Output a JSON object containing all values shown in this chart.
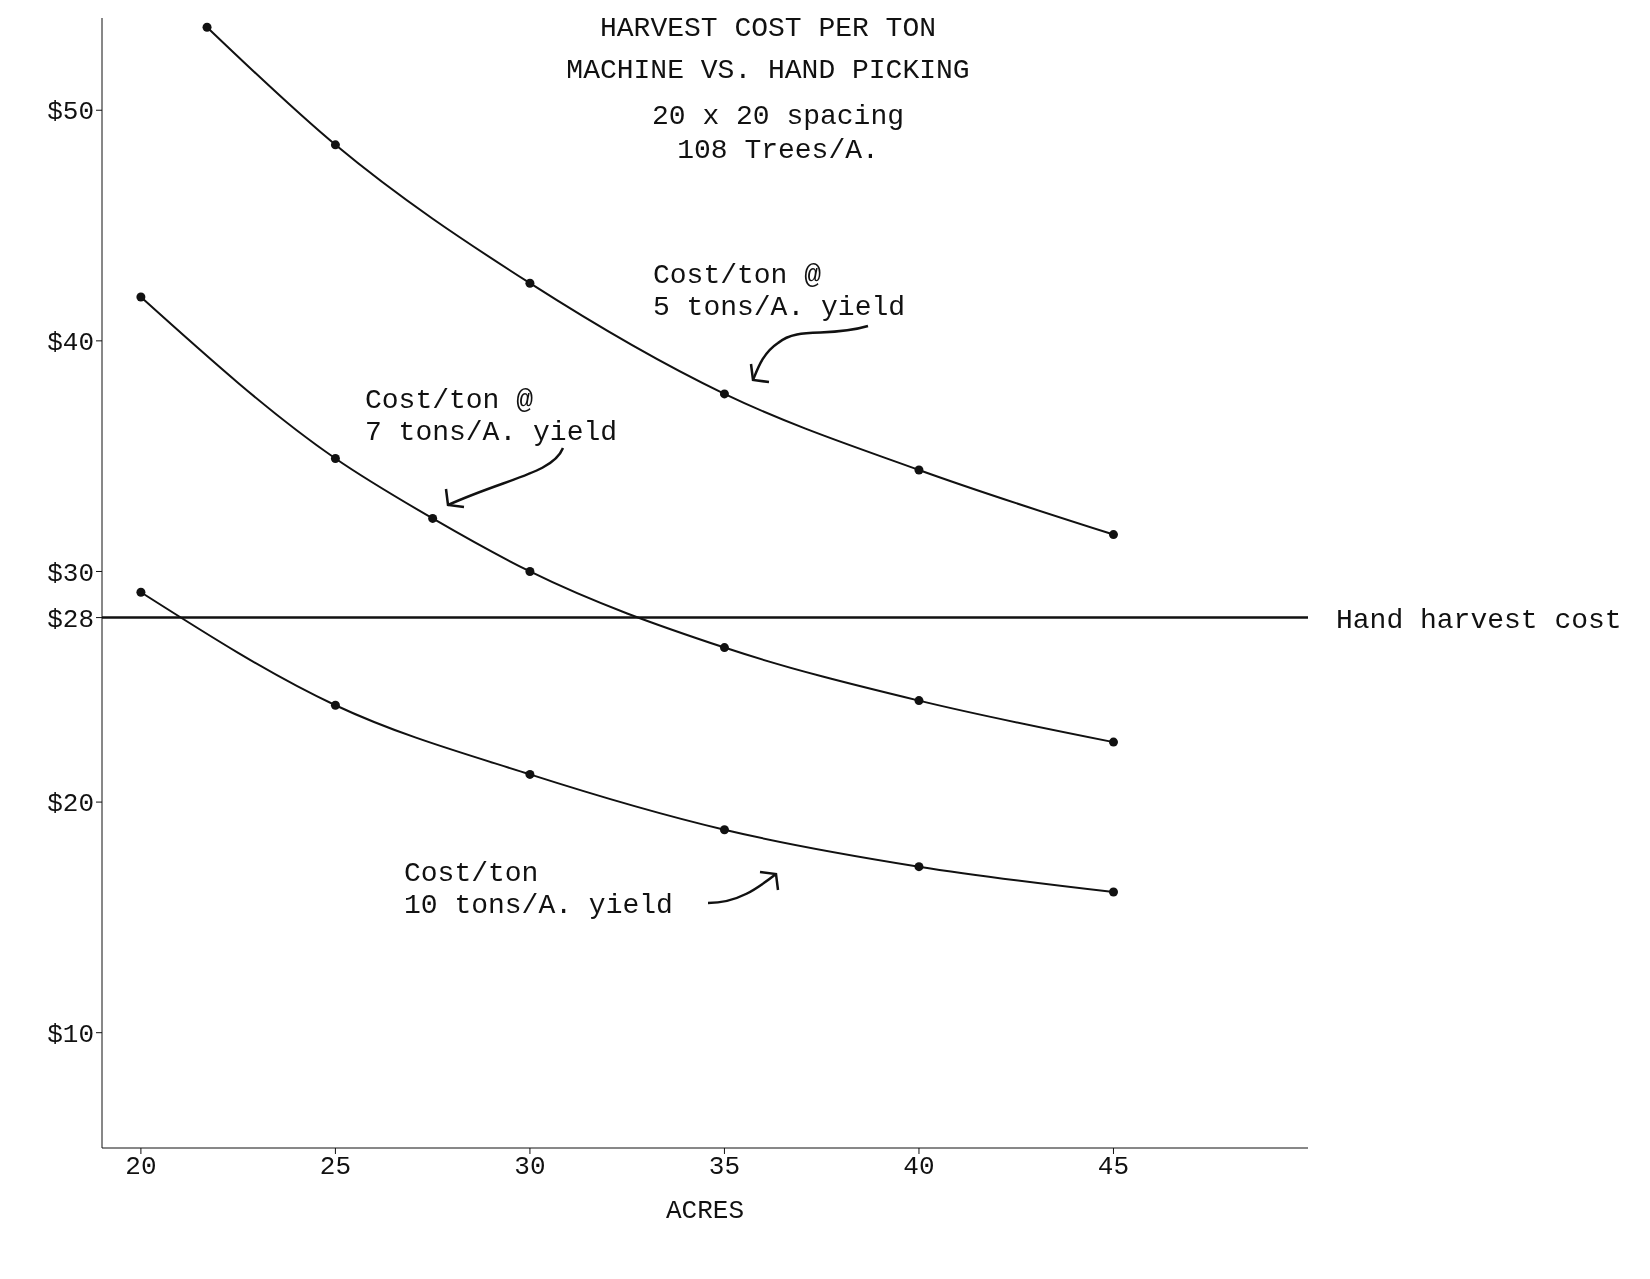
{
  "chart_data": {
    "type": "line",
    "title": "HARVEST COST PER TON\nMACHINE VS. HAND PICKING",
    "subtitle": "20 x 20 spacing\n108 Trees/A.",
    "xlabel": "ACRES",
    "series": [
      {
        "color": "#111111",
        "x": [
          21.7,
          25,
          30,
          35,
          40,
          45
        ],
        "values": [
          53.6,
          48.5,
          42.5,
          37.7,
          34.4,
          31.6
        ]
      },
      {
        "color": "#111111",
        "x": [
          20,
          25,
          27.5,
          30,
          35,
          40,
          45
        ],
        "values": [
          41.9,
          34.9,
          32.3,
          30.0,
          26.7,
          24.4,
          22.6
        ]
      },
      {
        "color": "#111111",
        "x": [
          20,
          25,
          30,
          35,
          40,
          45
        ],
        "values": [
          29.1,
          24.2,
          21.2,
          18.8,
          17.2,
          16.1
        ]
      }
    ],
    "xlim": [
      19,
      50
    ],
    "xticks": [
      20,
      25,
      30,
      35,
      40,
      45
    ],
    "ylim": [
      5,
      54
    ],
    "yticks": [
      {
        "value": 10,
        "label": "$10"
      },
      {
        "value": 20,
        "label": "$20"
      },
      {
        "value": 28,
        "label": "$28"
      },
      {
        "value": 30,
        "label": "$30"
      },
      {
        "value": 40,
        "label": "$40"
      },
      {
        "value": 50,
        "label": "$50"
      }
    ],
    "ref_lines": [
      {
        "axis": "y",
        "value": 28,
        "label": "Hand harvest cost",
        "color": "#111111"
      }
    ],
    "annotations": [
      "Cost/ton @\n5 tons/A. yield",
      "Cost/ton @\n7 tons/A. yield",
      "Cost/ton\n10 tons/A. yield"
    ],
    "marker": "circle",
    "line_style": "solid",
    "grid": false,
    "legend": false
  }
}
